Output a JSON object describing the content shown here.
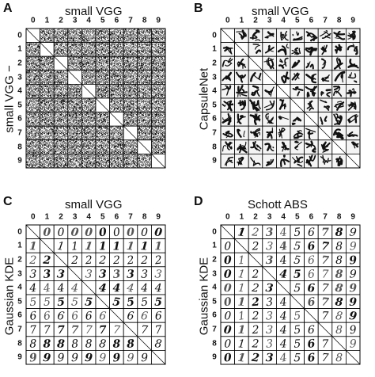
{
  "panels": [
    {
      "id": "A",
      "letter": "A",
      "title": "small VGG",
      "ylabel": "small VGG",
      "ylabel_suffix": "−",
      "col_labels": [
        "0",
        "1",
        "2",
        "3",
        "4",
        "5",
        "6",
        "7",
        "8",
        "9"
      ],
      "row_labels": [
        "0",
        "1",
        "2",
        "3",
        "4",
        "5",
        "6",
        "7",
        "8",
        "9"
      ],
      "cell_style": "noise",
      "diagonal_blank": true
    },
    {
      "id": "B",
      "letter": "B",
      "title": "small VGG",
      "ylabel": "CapsuleNet",
      "col_labels": [
        "0",
        "1",
        "2",
        "3",
        "4",
        "5",
        "6",
        "7",
        "8",
        "9"
      ],
      "row_labels": [
        "0",
        "1",
        "2",
        "3",
        "4",
        "5",
        "6",
        "7",
        "8",
        "9"
      ],
      "cell_style": "strokes",
      "diagonal_blank": true
    },
    {
      "id": "C",
      "letter": "C",
      "title": "small VGG",
      "ylabel": "Gaussian KDE",
      "col_labels": [
        "0",
        "1",
        "2",
        "3",
        "4",
        "5",
        "6",
        "7",
        "8",
        "9"
      ],
      "row_labels": [
        "0",
        "1",
        "2",
        "3",
        "4",
        "5",
        "6",
        "7",
        "8",
        "9"
      ],
      "cell_style": "digits",
      "cell_rule": "row",
      "diagonal_blank": true
    },
    {
      "id": "D",
      "letter": "D",
      "title": "Schott ABS",
      "ylabel": "Gaussian KDE",
      "col_labels": [
        "0",
        "1",
        "2",
        "3",
        "4",
        "5",
        "6",
        "7",
        "8",
        "9"
      ],
      "row_labels": [
        "0",
        "1",
        "2",
        "3",
        "4",
        "5",
        "6",
        "7",
        "8",
        "9"
      ],
      "cell_style": "digits",
      "cell_rule": "column",
      "diagonal_blank": true
    }
  ]
}
